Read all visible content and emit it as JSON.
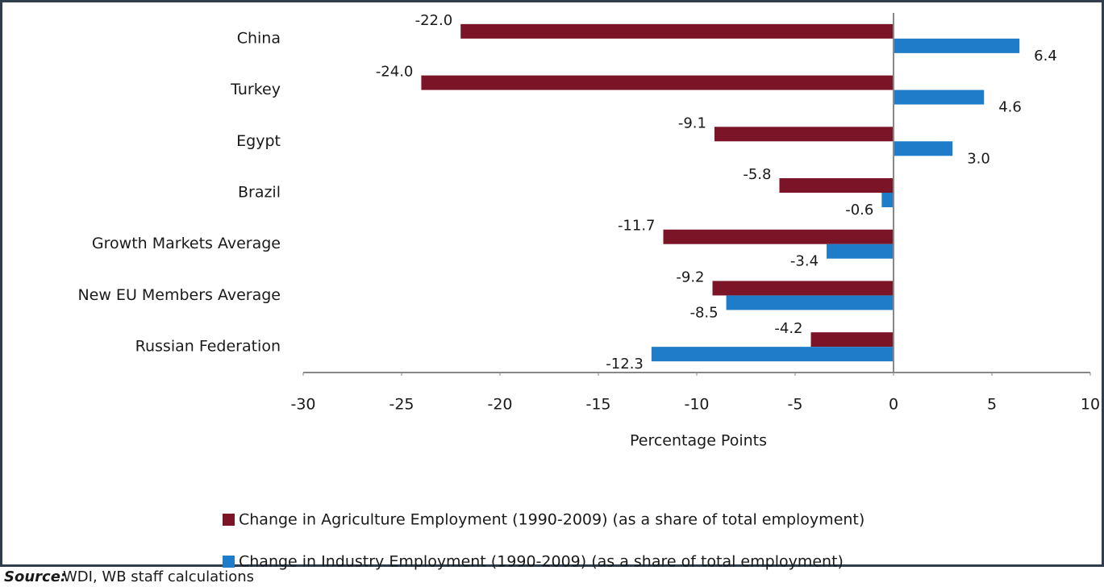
{
  "chart_data": {
    "type": "hbar",
    "categories": [
      "China",
      "Turkey",
      "Egypt",
      "Brazil",
      "Growth Markets Average",
      "New EU Members Average",
      "Russian Federation"
    ],
    "series": [
      {
        "name": "Change in Agriculture Employment (1990-2009) (as a share of total employment)",
        "color": "#7b1427",
        "values": [
          -22.0,
          -24.0,
          -9.1,
          -5.8,
          -11.7,
          -9.2,
          -4.2
        ],
        "value_labels": [
          "-22.0",
          "-24.0",
          "-9.1",
          "-5.8",
          "-11.7",
          "-9.2",
          "-4.2"
        ]
      },
      {
        "name": "Change in Industry Employment (1990-2009) (as a share of total employment)",
        "color": "#1f7cc8",
        "values": [
          6.4,
          4.6,
          3.0,
          -0.6,
          -3.4,
          -8.5,
          -12.3
        ],
        "value_labels": [
          "6.4",
          "4.6",
          "3.0",
          "-0.6",
          "-3.4",
          "-8.5",
          "-12.3"
        ]
      }
    ],
    "xlim": [
      -30,
      10
    ],
    "xticks": [
      -30,
      -25,
      -20,
      -15,
      -10,
      -5,
      0,
      5,
      10
    ],
    "xlabel": "Percentage Points",
    "source_label": "Source:",
    "source_text": "WDI, WB staff calculations"
  }
}
